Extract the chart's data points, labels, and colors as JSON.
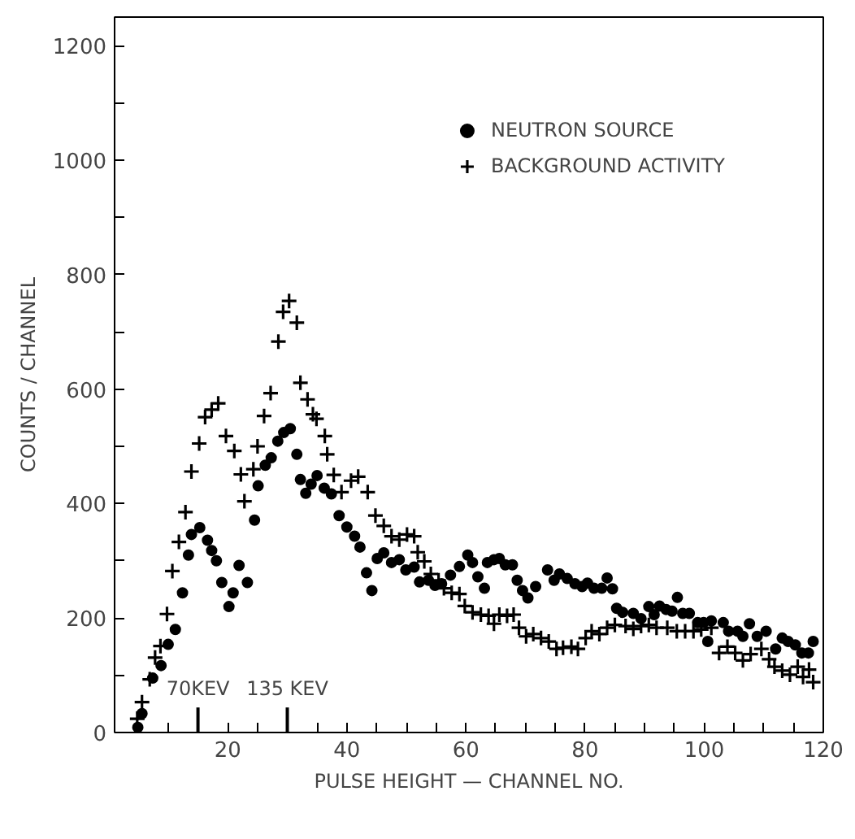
{
  "chart_data": {
    "type": "scatter",
    "xlabel": "PULSE HEIGHT — CHANNEL NO.",
    "ylabel": "COUNTS / CHANNEL",
    "xlim": [
      1,
      120
    ],
    "ylim": [
      0,
      1250
    ],
    "xticks": [
      {
        "value": 5,
        "label": null
      },
      {
        "value": 10,
        "label": null
      },
      {
        "value": 15,
        "label": null
      },
      20,
      {
        "value": 25,
        "label": null
      },
      {
        "value": 30,
        "label": null
      },
      {
        "value": 35,
        "label": null
      },
      40,
      {
        "value": 45,
        "label": null
      },
      {
        "value": 50,
        "label": null
      },
      {
        "value": 55,
        "label": null
      },
      60,
      {
        "value": 65,
        "label": null
      },
      {
        "value": 70,
        "label": null
      },
      {
        "value": 75,
        "label": null
      },
      80,
      {
        "value": 85,
        "label": null
      },
      {
        "value": 90,
        "label": null
      },
      {
        "value": 95,
        "label": null
      },
      100,
      {
        "value": 105,
        "label": null
      },
      {
        "value": 110,
        "label": null
      },
      {
        "value": 115,
        "label": null
      },
      120
    ],
    "yticks": [
      0,
      {
        "value": 100,
        "label": null
      },
      200,
      {
        "value": 300,
        "label": null
      },
      400,
      {
        "value": 500,
        "label": null
      },
      600,
      {
        "value": 700,
        "label": null
      },
      800,
      {
        "value": 900,
        "label": null
      },
      1000,
      {
        "value": 1100,
        "label": null
      },
      1200
    ],
    "grid": false,
    "legend": "top right",
    "ref_lines": [
      {
        "axis": "x",
        "value": 15,
        "label": "70KEV"
      },
      {
        "axis": "x",
        "value": 30,
        "label": "135 KEV"
      }
    ],
    "series": [
      {
        "name": "NEUTRON SOURCE",
        "color": "#000000",
        "marker": "circle",
        "x": [
          4.9,
          5.6,
          7.4,
          8.8,
          10.0,
          11.2,
          12.4,
          13.4,
          13.9,
          15.3,
          16.6,
          17.3,
          18.1,
          19.0,
          20.2,
          20.9,
          21.9,
          23.3,
          24.5,
          25.1,
          26.3,
          27.3,
          28.4,
          29.4,
          30.5,
          31.6,
          32.2,
          33.1,
          34.0,
          35.0,
          36.2,
          37.4,
          38.7,
          40.0,
          41.3,
          42.2,
          43.3,
          44.2,
          45.1,
          46.2,
          47.5,
          48.8,
          49.9,
          51.3,
          52.2,
          53.7,
          54.8,
          55.9,
          57.4,
          58.9,
          60.3,
          61.1,
          62.0,
          63.1,
          63.6,
          64.7,
          65.6,
          66.6,
          67.8,
          68.6,
          69.5,
          70.4,
          71.7,
          73.7,
          74.8,
          75.7,
          77.0,
          78.3,
          79.5,
          80.4,
          81.5,
          82.8,
          83.7,
          84.6,
          85.3,
          86.3,
          88.1,
          89.4,
          90.7,
          91.6,
          92.5,
          93.6,
          94.6,
          95.5,
          96.4,
          97.5,
          98.9,
          99.9,
          100.6,
          101.2,
          103.2,
          104.1,
          105.6,
          106.5,
          107.6,
          108.9,
          110.4,
          112.0,
          113.1,
          114.1,
          115.3,
          116.4,
          117.5,
          118.3
        ],
        "values": [
          9,
          33,
          95,
          117,
          154,
          180,
          244,
          310,
          346,
          358,
          336,
          318,
          300,
          262,
          220,
          244,
          292,
          262,
          371,
          431,
          467,
          480,
          509,
          524,
          531,
          486,
          442,
          418,
          434,
          449,
          427,
          417,
          379,
          359,
          343,
          324,
          279,
          248,
          304,
          314,
          297,
          302,
          284,
          289,
          263,
          266,
          257,
          260,
          275,
          290,
          310,
          297,
          272,
          252,
          297,
          302,
          304,
          293,
          293,
          266,
          248,
          235,
          255,
          284,
          266,
          277,
          269,
          260,
          255,
          261,
          252,
          252,
          270,
          251,
          217,
          210,
          208,
          199,
          220,
          206,
          221,
          215,
          212,
          236,
          208,
          208,
          192,
          192,
          159,
          195,
          192,
          177,
          177,
          168,
          190,
          168,
          177,
          146,
          165,
          159,
          153,
          139,
          139,
          159
        ]
      },
      {
        "name": "BACKGROUND ACTIVITY",
        "color": "#000000",
        "marker": "cross",
        "x": [
          4.8,
          5.6,
          6.9,
          7.8,
          8.7,
          9.8,
          10.7,
          11.8,
          12.9,
          13.9,
          15.2,
          16.2,
          17.3,
          18.4,
          19.7,
          21.1,
          22.2,
          22.8,
          24.3,
          25.0,
          26.1,
          27.2,
          28.5,
          29.3,
          30.3,
          31.6,
          32.2,
          33.4,
          34.3,
          34.9,
          36.3,
          36.7,
          37.8,
          39.1,
          40.7,
          41.9,
          43.5,
          44.8,
          46.2,
          47.5,
          48.8,
          50.1,
          51.3,
          51.9,
          53.0,
          54.1,
          55.4,
          56.3,
          57.6,
          58.9,
          59.8,
          61.1,
          62.5,
          63.8,
          64.7,
          65.6,
          66.9,
          68.0,
          68.9,
          70.1,
          71.3,
          72.6,
          73.9,
          75.2,
          76.3,
          77.7,
          78.8,
          80.1,
          81.1,
          82.4,
          83.7,
          85.0,
          86.8,
          88.1,
          89.4,
          90.7,
          92.0,
          93.8,
          95.4,
          96.8,
          98.2,
          99.5,
          101.2,
          102.5,
          103.9,
          105.2,
          106.5,
          107.8,
          109.6,
          110.9,
          111.8,
          113.1,
          114.4,
          115.7,
          116.6,
          117.6,
          118.3
        ],
        "values": [
          24,
          53,
          93,
          131,
          151,
          207,
          282,
          333,
          385,
          456,
          505,
          551,
          564,
          575,
          518,
          492,
          451,
          404,
          460,
          500,
          553,
          593,
          683,
          735,
          754,
          716,
          611,
          582,
          556,
          548,
          518,
          486,
          450,
          420,
          440,
          447,
          420,
          379,
          361,
          343,
          337,
          346,
          343,
          315,
          299,
          277,
          266,
          252,
          244,
          242,
          221,
          210,
          206,
          204,
          190,
          206,
          204,
          206,
          183,
          168,
          172,
          165,
          159,
          146,
          148,
          150,
          146,
          165,
          177,
          172,
          183,
          188,
          186,
          181,
          186,
          188,
          183,
          183,
          177,
          177,
          177,
          180,
          183,
          139,
          150,
          139,
          126,
          137,
          146,
          128,
          115,
          108,
          101,
          115,
          97,
          110,
          88
        ]
      }
    ]
  }
}
